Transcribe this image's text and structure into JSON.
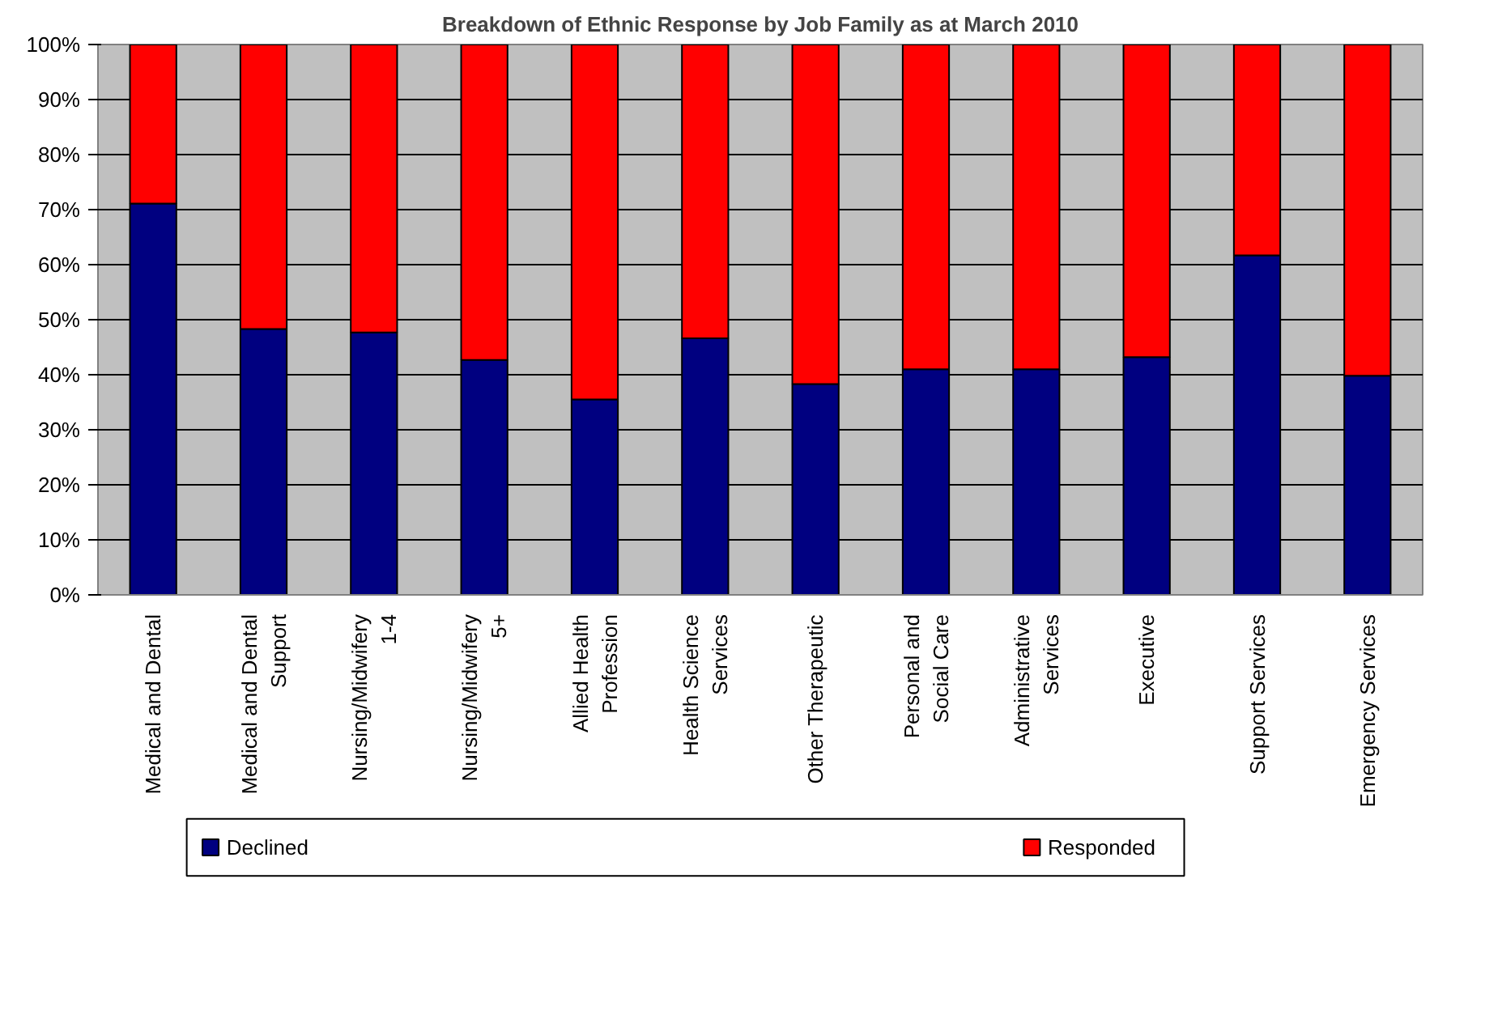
{
  "chart_data": {
    "type": "bar",
    "title": "Breakdown of Ethnic Response by Job Family as at March 2010",
    "categories": [
      "Medical and Dental",
      "Medical and Dental Support",
      "Nursing/Midwifery 1-4",
      "Nursing/Midwifery 5+",
      "Allied Health Profession",
      "Health Science Services",
      "Other Therapeutic",
      "Personal and Social Care",
      "Administrative Services",
      "Executive",
      "Support Services",
      "Emergency Services"
    ],
    "stacked": true,
    "series": [
      {
        "name": "Declined",
        "color": "#000080",
        "values": [
          71.1,
          48.3,
          47.7,
          42.7,
          35.5,
          46.6,
          38.3,
          41.0,
          41.0,
          43.2,
          61.7,
          39.8
        ]
      },
      {
        "name": "Responded",
        "color": "#ff0000",
        "values": [
          28.9,
          51.7,
          52.3,
          57.3,
          64.5,
          53.4,
          61.7,
          59.0,
          59.0,
          56.8,
          38.3,
          60.2
        ]
      }
    ],
    "ylim": [
      0,
      100
    ],
    "yticks": [
      {
        "value": 0,
        "label": "0%"
      },
      {
        "value": 10,
        "label": "10%"
      },
      {
        "value": 20,
        "label": "20%"
      },
      {
        "value": 30,
        "label": "30%"
      },
      {
        "value": 40,
        "label": "40%"
      },
      {
        "value": 50,
        "label": "50%"
      },
      {
        "value": 60,
        "label": "60%"
      },
      {
        "value": 70,
        "label": "70%"
      },
      {
        "value": 80,
        "label": "80%"
      },
      {
        "value": 90,
        "label": "90%"
      },
      {
        "value": 100,
        "label": "100%"
      }
    ],
    "grid": "y",
    "legend": "bottom"
  }
}
